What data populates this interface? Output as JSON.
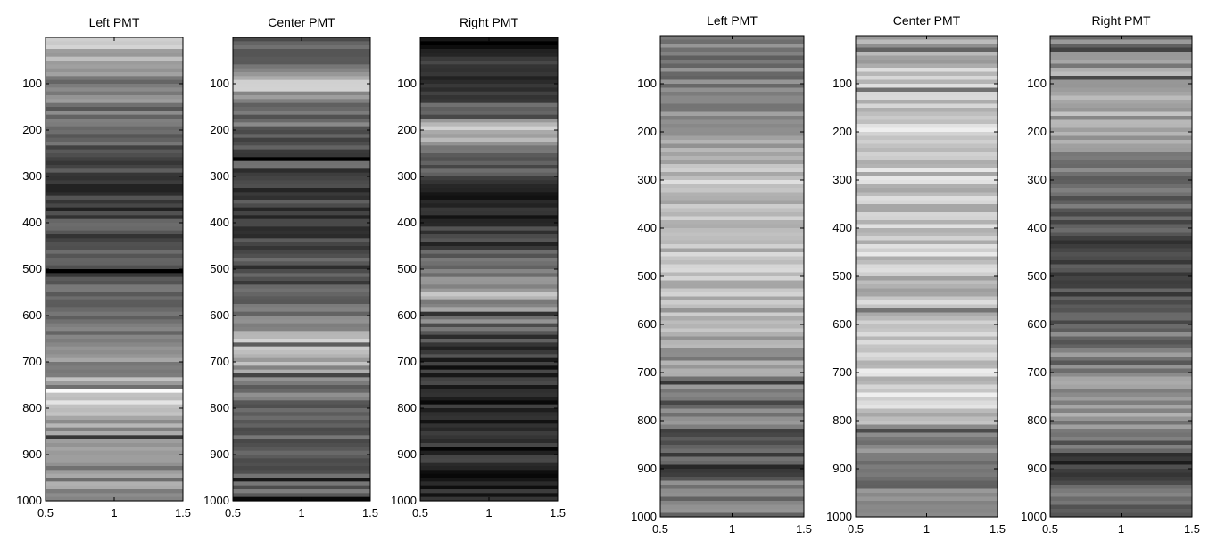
{
  "figure": {
    "groups": [
      {
        "panels": [
          {
            "title": "Left PMT",
            "seed": 11,
            "profile": [
              [
                0,
                230
              ],
              [
                8,
                220
              ],
              [
                25,
                190
              ],
              [
                60,
                160
              ],
              [
                120,
                130
              ],
              [
                180,
                110
              ],
              [
                250,
                95
              ],
              [
                330,
                60
              ],
              [
                400,
                75
              ],
              [
                450,
                80
              ],
              [
                520,
                85
              ],
              [
                600,
                110
              ],
              [
                680,
                125
              ],
              [
                730,
                150
              ],
              [
                760,
                215
              ],
              [
                790,
                225
              ],
              [
                830,
                150
              ],
              [
                900,
                145
              ],
              [
                1000,
                140
              ]
            ]
          },
          {
            "title": "Center PMT",
            "seed": 23,
            "profile": [
              [
                0,
                90
              ],
              [
                50,
                110
              ],
              [
                80,
                170
              ],
              [
                110,
                200
              ],
              [
                130,
                130
              ],
              [
                160,
                115
              ],
              [
                200,
                100
              ],
              [
                280,
                80
              ],
              [
                350,
                60
              ],
              [
                420,
                75
              ],
              [
                500,
                80
              ],
              [
                580,
                95
              ],
              [
                600,
                140
              ],
              [
                640,
                170
              ],
              [
                680,
                200
              ],
              [
                720,
                150
              ],
              [
                760,
                110
              ],
              [
                850,
                105
              ],
              [
                920,
                95
              ],
              [
                1000,
                90
              ]
            ]
          },
          {
            "title": "Right PMT",
            "seed": 37,
            "profile": [
              [
                0,
                40
              ],
              [
                60,
                55
              ],
              [
                120,
                70
              ],
              [
                160,
                115
              ],
              [
                190,
                195
              ],
              [
                220,
                170
              ],
              [
                260,
                110
              ],
              [
                300,
                75
              ],
              [
                350,
                45
              ],
              [
                430,
                55
              ],
              [
                480,
                90
              ],
              [
                520,
                140
              ],
              [
                560,
                185
              ],
              [
                590,
                150
              ],
              [
                640,
                80
              ],
              [
                700,
                50
              ],
              [
                800,
                35
              ],
              [
                900,
                40
              ],
              [
                1000,
                35
              ]
            ]
          }
        ]
      },
      {
        "panels": [
          {
            "title": "Left PMT",
            "seed": 53,
            "profile": [
              [
                0,
                140
              ],
              [
                100,
                120
              ],
              [
                150,
                150
              ],
              [
                200,
                170
              ],
              [
                260,
                185
              ],
              [
                400,
                195
              ],
              [
                500,
                190
              ],
              [
                600,
                180
              ],
              [
                660,
                150
              ],
              [
                720,
                140
              ],
              [
                800,
                125
              ],
              [
                840,
                60
              ],
              [
                880,
                90
              ],
              [
                900,
                70
              ],
              [
                940,
                130
              ],
              [
                1000,
                120
              ]
            ]
          },
          {
            "title": "Center PMT",
            "seed": 67,
            "profile": [
              [
                0,
                170
              ],
              [
                80,
                190
              ],
              [
                140,
                205
              ],
              [
                210,
                230
              ],
              [
                260,
                200
              ],
              [
                350,
                190
              ],
              [
                450,
                200
              ],
              [
                520,
                185
              ],
              [
                580,
                195
              ],
              [
                620,
                215
              ],
              [
                700,
                205
              ],
              [
                770,
                210
              ],
              [
                820,
                150
              ],
              [
                900,
                100
              ],
              [
                960,
                130
              ],
              [
                1000,
                120
              ]
            ]
          },
          {
            "title": "Right PMT",
            "seed": 79,
            "profile": [
              [
                0,
                120
              ],
              [
                60,
                150
              ],
              [
                120,
                170
              ],
              [
                200,
                160
              ],
              [
                300,
                120
              ],
              [
                400,
                90
              ],
              [
                480,
                60
              ],
              [
                550,
                95
              ],
              [
                620,
                110
              ],
              [
                700,
                140
              ],
              [
                780,
                160
              ],
              [
                840,
                120
              ],
              [
                890,
                55
              ],
              [
                950,
                100
              ],
              [
                1000,
                80
              ]
            ]
          }
        ]
      }
    ],
    "panel_groups": [
      "group-1",
      "group-2"
    ],
    "y_ticks": [
      "100",
      "200",
      "300",
      "400",
      "500",
      "600",
      "700",
      "800",
      "900",
      "1000"
    ],
    "x_ticks": [
      "0.5",
      "1",
      "1.5"
    ],
    "ylim": [
      0,
      1000
    ],
    "xlim": [
      0.5,
      1.5
    ],
    "n_stripes": 120
  },
  "chart_data": {
    "type": "heatmap",
    "colormap": "gray",
    "ylim": [
      0,
      1000
    ],
    "xlim": [
      0.5,
      1.5
    ],
    "y_ticks": [
      100,
      200,
      300,
      400,
      500,
      600,
      700,
      800,
      900,
      1000
    ],
    "x_ticks": [
      0.5,
      1,
      1.5
    ],
    "panels": [
      "Left PMT",
      "Center PMT",
      "Right PMT",
      "Left PMT",
      "Center PMT",
      "Right PMT"
    ]
  }
}
